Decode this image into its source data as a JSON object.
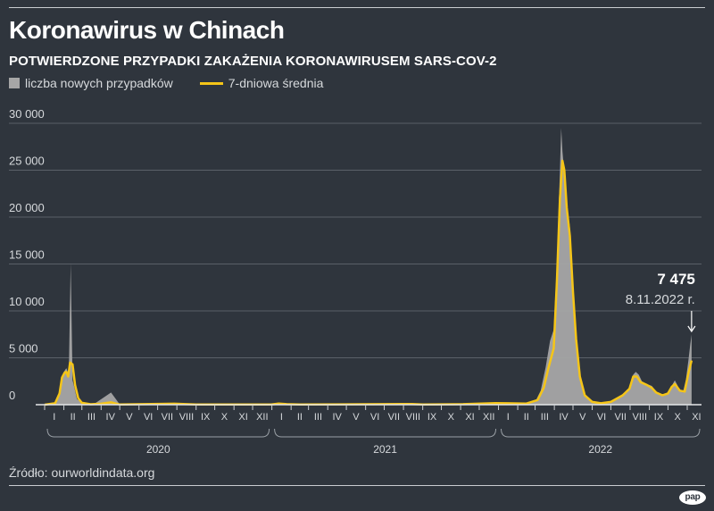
{
  "header": {
    "title": "Koronawirus w Chinach",
    "subtitle": "POTWIERDZONE PRZYPADKI ZAKAŻENIA KORONAWIRUSEM SARS-COV-2"
  },
  "legend": {
    "bars_label": "liczba nowych przypadków",
    "line_label": "7-dniowa średnia"
  },
  "colors": {
    "background": "#2f353d",
    "bars": "#a6a6a6",
    "line": "#f5c518",
    "grid": "#5a6068",
    "text": "#d6d9dc"
  },
  "chart_data": {
    "type": "bar",
    "title": "Koronawirus w Chinach",
    "subtitle": "POTWIERDZONE PRZYPADKI ZAKAŻENIA KORONAWIRUSEM SARS-COV-2",
    "ylim": [
      0,
      30000
    ],
    "y_ticks": [
      0,
      5000,
      10000,
      15000,
      20000,
      25000,
      30000
    ],
    "y_tick_labels": [
      "0",
      "5 000",
      "10 000",
      "15 000",
      "20 000",
      "25 000",
      "30 000"
    ],
    "x_months": [
      "I",
      "II",
      "III",
      "IV",
      "V",
      "VI",
      "VII",
      "VIII",
      "IX",
      "X",
      "XI",
      "XII",
      "I",
      "II",
      "III",
      "IV",
      "V",
      "VI",
      "VII",
      "VIII",
      "IX",
      "X",
      "XI",
      "XII",
      "I",
      "II",
      "III",
      "IV",
      "V",
      "VI",
      "VII",
      "VIII",
      "IX",
      "X",
      "XI"
    ],
    "years": [
      "2020",
      "2021",
      "2022"
    ],
    "grid": true,
    "legend_position": "top-left",
    "series": [
      {
        "name": "liczba nowych przypadków",
        "type": "bar",
        "points": [
          [
            "2020-01-10",
            0
          ],
          [
            "2020-01-20",
            300
          ],
          [
            "2020-01-25",
            1500
          ],
          [
            "2020-01-28",
            2800
          ],
          [
            "2020-02-01",
            3500
          ],
          [
            "2020-02-05",
            3900
          ],
          [
            "2020-02-09",
            3200
          ],
          [
            "2020-02-12",
            15100
          ],
          [
            "2020-02-15",
            2600
          ],
          [
            "2020-02-18",
            1800
          ],
          [
            "2020-02-22",
            600
          ],
          [
            "2020-02-28",
            300
          ],
          [
            "2020-03-05",
            120
          ],
          [
            "2020-03-20",
            50
          ],
          [
            "2020-04-17",
            1300
          ],
          [
            "2020-05-01",
            30
          ],
          [
            "2020-06-15",
            40
          ],
          [
            "2020-07-28",
            120
          ],
          [
            "2020-08-20",
            30
          ],
          [
            "2020-10-15",
            20
          ],
          [
            "2020-12-31",
            30
          ],
          [
            "2021-01-12",
            140
          ],
          [
            "2021-01-20",
            90
          ],
          [
            "2021-02-15",
            20
          ],
          [
            "2021-05-01",
            20
          ],
          [
            "2021-07-30",
            90
          ],
          [
            "2021-08-15",
            60
          ],
          [
            "2021-10-30",
            60
          ],
          [
            "2021-11-15",
            50
          ],
          [
            "2021-12-27",
            250
          ],
          [
            "2022-01-10",
            200
          ],
          [
            "2022-02-01",
            100
          ],
          [
            "2022-02-15",
            150
          ],
          [
            "2022-03-01",
            300
          ],
          [
            "2022-03-10",
            1500
          ],
          [
            "2022-03-18",
            4000
          ],
          [
            "2022-03-25",
            6800
          ],
          [
            "2022-03-31",
            8000
          ],
          [
            "2022-04-05",
            15000
          ],
          [
            "2022-04-10",
            25000
          ],
          [
            "2022-04-12",
            29500
          ],
          [
            "2022-04-14",
            27000
          ],
          [
            "2022-04-18",
            24000
          ],
          [
            "2022-04-22",
            21000
          ],
          [
            "2022-04-26",
            19000
          ],
          [
            "2022-05-01",
            12000
          ],
          [
            "2022-05-06",
            7000
          ],
          [
            "2022-05-12",
            3000
          ],
          [
            "2022-05-20",
            1000
          ],
          [
            "2022-06-01",
            300
          ],
          [
            "2022-06-15",
            150
          ],
          [
            "2022-07-01",
            300
          ],
          [
            "2022-07-20",
            1000
          ],
          [
            "2022-07-31",
            1800
          ],
          [
            "2022-08-06",
            3200
          ],
          [
            "2022-08-10",
            3500
          ],
          [
            "2022-08-15",
            3200
          ],
          [
            "2022-08-20",
            2500
          ],
          [
            "2022-08-28",
            2200
          ],
          [
            "2022-09-05",
            2000
          ],
          [
            "2022-09-12",
            1400
          ],
          [
            "2022-09-22",
            1000
          ],
          [
            "2022-10-01",
            1200
          ],
          [
            "2022-10-07",
            2000
          ],
          [
            "2022-10-12",
            2600
          ],
          [
            "2022-10-20",
            1600
          ],
          [
            "2022-10-25",
            1300
          ],
          [
            "2022-10-30",
            2700
          ],
          [
            "2022-11-03",
            4800
          ],
          [
            "2022-11-06",
            6500
          ],
          [
            "2022-11-08",
            7475
          ]
        ]
      },
      {
        "name": "7-dniowa średnia",
        "type": "line",
        "points": [
          [
            "2020-01-01",
            0
          ],
          [
            "2020-01-18",
            150
          ],
          [
            "2020-01-25",
            1200
          ],
          [
            "2020-01-29",
            2900
          ],
          [
            "2020-02-02",
            3400
          ],
          [
            "2020-02-05",
            3500
          ],
          [
            "2020-02-08",
            3000
          ],
          [
            "2020-02-11",
            4500
          ],
          [
            "2020-02-15",
            4300
          ],
          [
            "2020-02-19",
            2100
          ],
          [
            "2020-02-24",
            700
          ],
          [
            "2020-03-01",
            200
          ],
          [
            "2020-03-15",
            50
          ],
          [
            "2020-04-01",
            100
          ],
          [
            "2020-04-17",
            250
          ],
          [
            "2020-05-01",
            20
          ],
          [
            "2020-07-28",
            100
          ],
          [
            "2020-09-01",
            20
          ],
          [
            "2020-12-31",
            30
          ],
          [
            "2021-01-12",
            120
          ],
          [
            "2021-01-25",
            60
          ],
          [
            "2021-02-15",
            15
          ],
          [
            "2021-07-30",
            70
          ],
          [
            "2021-08-15",
            80
          ],
          [
            "2021-09-01",
            30
          ],
          [
            "2021-11-05",
            60
          ],
          [
            "2021-12-27",
            170
          ],
          [
            "2022-01-15",
            150
          ],
          [
            "2022-02-15",
            120
          ],
          [
            "2022-03-05",
            500
          ],
          [
            "2022-03-15",
            1800
          ],
          [
            "2022-03-22",
            3800
          ],
          [
            "2022-03-31",
            6000
          ],
          [
            "2022-04-05",
            13000
          ],
          [
            "2022-04-10",
            22000
          ],
          [
            "2022-04-14",
            26000
          ],
          [
            "2022-04-17",
            25000
          ],
          [
            "2022-04-21",
            21000
          ],
          [
            "2022-04-26",
            18000
          ],
          [
            "2022-05-01",
            12000
          ],
          [
            "2022-05-06",
            7000
          ],
          [
            "2022-05-12",
            3000
          ],
          [
            "2022-05-20",
            1000
          ],
          [
            "2022-06-01",
            300
          ],
          [
            "2022-06-15",
            150
          ],
          [
            "2022-07-01",
            300
          ],
          [
            "2022-07-20",
            1000
          ],
          [
            "2022-07-31",
            1700
          ],
          [
            "2022-08-06",
            3000
          ],
          [
            "2022-08-12",
            3000
          ],
          [
            "2022-08-18",
            2400
          ],
          [
            "2022-08-28",
            2100
          ],
          [
            "2022-09-05",
            1800
          ],
          [
            "2022-09-12",
            1300
          ],
          [
            "2022-09-22",
            1000
          ],
          [
            "2022-10-01",
            1200
          ],
          [
            "2022-10-07",
            1900
          ],
          [
            "2022-10-12",
            2200
          ],
          [
            "2022-10-20",
            1500
          ],
          [
            "2022-10-28",
            1400
          ],
          [
            "2022-11-03",
            3400
          ],
          [
            "2022-11-08",
            4700
          ]
        ]
      }
    ],
    "annotation": {
      "value_label": "7 475",
      "date_label": "8.11.2022 r.",
      "date": "2022-11-08",
      "value": 7475
    }
  },
  "footer": {
    "source": "Źródło: ourworldindata.org",
    "logo_text": "pap"
  }
}
